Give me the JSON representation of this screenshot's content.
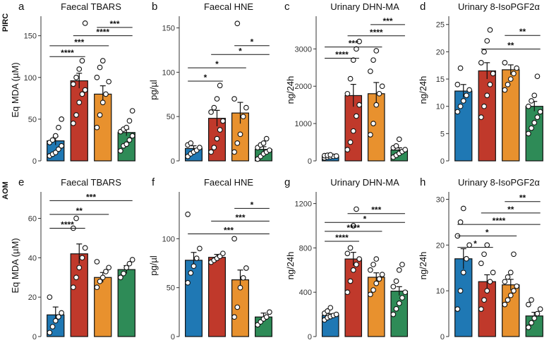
{
  "colors": [
    "#1f78b4",
    "#c0392b",
    "#e8912e",
    "#2e8b57"
  ],
  "row_labels": [
    "PIRC",
    "AOM"
  ],
  "chart_data": [
    {
      "type": "bar",
      "panel": "a",
      "row": 0,
      "title": "Faecal TBARS",
      "ylabel": "Eq MDA (µM)",
      "ylim": [
        0,
        170
      ],
      "ticks": [
        0,
        50,
        100,
        150
      ],
      "means": [
        24,
        96,
        80,
        34
      ],
      "sem": [
        5,
        9,
        10,
        4
      ],
      "points": [
        [
          6,
          8,
          10,
          14,
          18,
          22,
          25,
          30,
          40,
          50
        ],
        [
          45,
          55,
          70,
          80,
          85,
          92,
          100,
          110,
          120,
          165
        ],
        [
          40,
          55,
          70,
          80,
          95,
          100,
          112,
          120
        ],
        [
          12,
          18,
          20,
          25,
          30,
          35,
          38,
          40,
          48,
          60
        ]
      ],
      "brackets": [
        {
          "a": 0,
          "b": 1,
          "y": 125,
          "label": "****"
        },
        {
          "a": 0,
          "b": 2,
          "y": 138,
          "label": "***"
        },
        {
          "a": 1,
          "b": 3,
          "y": 150,
          "label": "****"
        },
        {
          "a": 2,
          "b": 3,
          "y": 160,
          "label": "***"
        }
      ]
    },
    {
      "type": "bar",
      "panel": "b",
      "row": 0,
      "title": "Faecal HNE",
      "ylabel": "pg/µl",
      "ylim": [
        0,
        160
      ],
      "ticks": [
        0,
        50,
        100,
        150
      ],
      "means": [
        14,
        48,
        54,
        13
      ],
      "sem": [
        3,
        9,
        12,
        3
      ],
      "points": [
        [
          5,
          8,
          10,
          12,
          15,
          18,
          20
        ],
        [
          10,
          15,
          25,
          35,
          45,
          55,
          60,
          70,
          85
        ],
        [
          10,
          20,
          30,
          50,
          60,
          70,
          155
        ],
        [
          2,
          5,
          8,
          10,
          12,
          15,
          18,
          20,
          25
        ]
      ],
      "brackets": [
        {
          "a": 0,
          "b": 1,
          "y": 90,
          "label": "*"
        },
        {
          "a": 0,
          "b": 2,
          "y": 105,
          "label": "*"
        },
        {
          "a": 1,
          "b": 3,
          "y": 120,
          "label": "*"
        },
        {
          "a": 2,
          "b": 3,
          "y": 130,
          "label": "*"
        }
      ]
    },
    {
      "type": "bar",
      "panel": "c",
      "row": 0,
      "title": "Urinary DHN-MA",
      "ylabel": "ng/24h",
      "ylim": [
        0,
        3800
      ],
      "ticks": [
        0,
        1000,
        2000,
        3000
      ],
      "means": [
        130,
        1750,
        1800,
        290
      ],
      "sem": [
        20,
        300,
        300,
        60
      ],
      "points": [
        [
          80,
          100,
          110,
          120,
          130,
          140,
          150,
          160
        ],
        [
          300,
          500,
          800,
          1200,
          1500,
          1800,
          2200,
          2700,
          3000,
          3200
        ],
        [
          700,
          1000,
          1500,
          1800,
          2000,
          2400,
          2700,
          2950
        ],
        [
          100,
          150,
          200,
          250,
          300,
          350,
          400,
          580
        ]
      ],
      "brackets": [
        {
          "a": 0,
          "b": 1,
          "y": 2750,
          "label": "****"
        },
        {
          "a": 0,
          "b": 2,
          "y": 3050,
          "label": "***"
        },
        {
          "a": 1,
          "b": 3,
          "y": 3350,
          "label": "****"
        },
        {
          "a": 2,
          "b": 3,
          "y": 3650,
          "label": "***"
        }
      ]
    },
    {
      "type": "bar",
      "panel": "d",
      "row": 0,
      "title": "Urinary 8-IsoPGF2α",
      "ylabel": "ng/24h",
      "ylim": [
        0,
        26
      ],
      "ticks": [
        0,
        5,
        10,
        15,
        20,
        25
      ],
      "means": [
        12.8,
        16.5,
        16.7,
        10
      ],
      "sem": [
        1.2,
        1.5,
        0.9,
        0.9
      ],
      "points": [
        [
          9,
          10,
          11,
          12,
          13,
          14,
          17
        ],
        [
          8,
          10,
          12,
          14,
          16,
          18,
          20,
          22,
          24
        ],
        [
          13,
          14,
          15,
          16,
          17,
          18
        ],
        [
          5,
          6,
          7,
          8,
          9,
          10,
          11,
          12,
          15.5
        ]
      ],
      "brackets": [
        {
          "a": 1,
          "b": 3,
          "y": 20.5,
          "label": "**"
        },
        {
          "a": 2,
          "b": 3,
          "y": 23,
          "label": "**"
        }
      ]
    },
    {
      "type": "bar",
      "panel": "e",
      "row": 1,
      "title": "Faecal TBARS",
      "ylabel": "Eq MDA (µM)",
      "ylim": [
        0,
        72
      ],
      "ticks": [
        0,
        20,
        40,
        60
      ],
      "means": [
        11,
        42,
        30,
        34
      ],
      "sem": [
        4,
        5,
        2.5,
        2
      ],
      "points": [
        [
          2,
          5,
          8,
          10,
          12,
          20
        ],
        [
          25,
          30,
          35,
          40,
          45,
          55,
          60
        ],
        [
          25,
          28,
          30,
          33,
          35,
          38
        ],
        [
          30,
          32,
          35,
          37,
          39
        ]
      ],
      "brackets": [
        {
          "a": 0,
          "b": 1,
          "y": 55,
          "label": "****"
        },
        {
          "a": 0,
          "b": 2,
          "y": 62,
          "label": "**"
        },
        {
          "a": 0,
          "b": 3,
          "y": 69,
          "label": "***"
        }
      ]
    },
    {
      "type": "bar",
      "panel": "f",
      "row": 1,
      "title": "Faecal HNE",
      "ylabel": "pg/µl",
      "ylim": [
        0,
        145
      ],
      "ticks": [
        0,
        50,
        100
      ],
      "means": [
        78,
        81,
        58,
        20
      ],
      "sem": [
        8,
        3,
        10,
        4
      ],
      "points": [
        [
          55,
          65,
          72,
          80,
          90,
          125
        ],
        [
          76,
          78,
          80,
          82,
          85
        ],
        [
          20,
          30,
          50,
          60,
          70,
          100
        ],
        [
          12,
          15,
          18,
          20,
          25
        ]
      ],
      "brackets": [
        {
          "a": 0,
          "b": 3,
          "y": 105,
          "label": "***"
        },
        {
          "a": 1,
          "b": 3,
          "y": 118,
          "label": "***"
        },
        {
          "a": 2,
          "b": 3,
          "y": 131,
          "label": "*"
        }
      ]
    },
    {
      "type": "bar",
      "panel": "g",
      "row": 1,
      "title": "Urinary DHN-MA",
      "ylabel": "ng/24h",
      "ylim": [
        0,
        1280
      ],
      "ticks": [
        0,
        400,
        800,
        1200
      ],
      "means": [
        190,
        700,
        535,
        410
      ],
      "sem": [
        15,
        60,
        40,
        40
      ],
      "points": [
        [
          150,
          170,
          180,
          190,
          200,
          210,
          230,
          260
        ],
        [
          400,
          500,
          600,
          650,
          700,
          750,
          800,
          1000,
          1150
        ],
        [
          380,
          420,
          480,
          520,
          560,
          600,
          650,
          700
        ],
        [
          200,
          250,
          300,
          350,
          400,
          450,
          500,
          600,
          650
        ]
      ],
      "brackets": [
        {
          "a": 0,
          "b": 1,
          "y": 860,
          "label": "****"
        },
        {
          "a": 0,
          "b": 2,
          "y": 950,
          "label": "****"
        },
        {
          "a": 0,
          "b": 3,
          "y": 1030,
          "label": "*"
        },
        {
          "a": 1,
          "b": 3,
          "y": 1110,
          "label": "***"
        }
      ]
    },
    {
      "type": "bar",
      "panel": "h",
      "row": 1,
      "title": "Urinary 8-IsoPGF2α",
      "ylabel": "ng/24h",
      "ylim": [
        0,
        31
      ],
      "ticks": [
        0,
        10,
        20,
        30
      ],
      "means": [
        17,
        12,
        11.3,
        4.5
      ],
      "sem": [
        2.2,
        1.5,
        1.2,
        0.8
      ],
      "points": [
        [
          6,
          10,
          14,
          17,
          20,
          22,
          25,
          28
        ],
        [
          6,
          8,
          10,
          12,
          14,
          16,
          18,
          20
        ],
        [
          7,
          8,
          9,
          10,
          11,
          12,
          13,
          14,
          18
        ],
        [
          2,
          3,
          4,
          5,
          6,
          7,
          8
        ]
      ],
      "brackets": [
        {
          "a": 0,
          "b": 1,
          "y": 19.5,
          "label": "*"
        },
        {
          "a": 0,
          "b": 2,
          "y": 22,
          "label": "*"
        },
        {
          "a": 0,
          "b": 3,
          "y": 24.5,
          "label": "****"
        },
        {
          "a": 1,
          "b": 3,
          "y": 27,
          "label": "**"
        },
        {
          "a": 2,
          "b": 3,
          "y": 29.5,
          "label": "**"
        }
      ]
    }
  ]
}
